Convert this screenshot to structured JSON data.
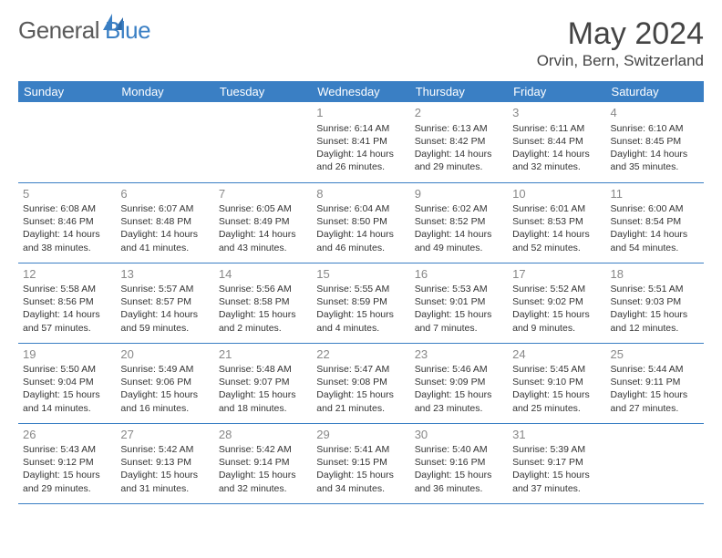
{
  "brand": {
    "part1": "General",
    "part2": "Blue"
  },
  "title": "May 2024",
  "location": "Orvin, Bern, Switzerland",
  "colors": {
    "header_bg": "#3a7fc4",
    "header_fg": "#ffffff",
    "border": "#3a7fc4",
    "text": "#333333",
    "daynum": "#888888",
    "logo_gray": "#5a5a5a",
    "logo_blue": "#3a7fc4"
  },
  "weekdays": [
    "Sunday",
    "Monday",
    "Tuesday",
    "Wednesday",
    "Thursday",
    "Friday",
    "Saturday"
  ],
  "weeks": [
    [
      null,
      null,
      null,
      {
        "d": "1",
        "sr": "6:14 AM",
        "ss": "8:41 PM",
        "dl": "14 hours and 26 minutes."
      },
      {
        "d": "2",
        "sr": "6:13 AM",
        "ss": "8:42 PM",
        "dl": "14 hours and 29 minutes."
      },
      {
        "d": "3",
        "sr": "6:11 AM",
        "ss": "8:44 PM",
        "dl": "14 hours and 32 minutes."
      },
      {
        "d": "4",
        "sr": "6:10 AM",
        "ss": "8:45 PM",
        "dl": "14 hours and 35 minutes."
      }
    ],
    [
      {
        "d": "5",
        "sr": "6:08 AM",
        "ss": "8:46 PM",
        "dl": "14 hours and 38 minutes."
      },
      {
        "d": "6",
        "sr": "6:07 AM",
        "ss": "8:48 PM",
        "dl": "14 hours and 41 minutes."
      },
      {
        "d": "7",
        "sr": "6:05 AM",
        "ss": "8:49 PM",
        "dl": "14 hours and 43 minutes."
      },
      {
        "d": "8",
        "sr": "6:04 AM",
        "ss": "8:50 PM",
        "dl": "14 hours and 46 minutes."
      },
      {
        "d": "9",
        "sr": "6:02 AM",
        "ss": "8:52 PM",
        "dl": "14 hours and 49 minutes."
      },
      {
        "d": "10",
        "sr": "6:01 AM",
        "ss": "8:53 PM",
        "dl": "14 hours and 52 minutes."
      },
      {
        "d": "11",
        "sr": "6:00 AM",
        "ss": "8:54 PM",
        "dl": "14 hours and 54 minutes."
      }
    ],
    [
      {
        "d": "12",
        "sr": "5:58 AM",
        "ss": "8:56 PM",
        "dl": "14 hours and 57 minutes."
      },
      {
        "d": "13",
        "sr": "5:57 AM",
        "ss": "8:57 PM",
        "dl": "14 hours and 59 minutes."
      },
      {
        "d": "14",
        "sr": "5:56 AM",
        "ss": "8:58 PM",
        "dl": "15 hours and 2 minutes."
      },
      {
        "d": "15",
        "sr": "5:55 AM",
        "ss": "8:59 PM",
        "dl": "15 hours and 4 minutes."
      },
      {
        "d": "16",
        "sr": "5:53 AM",
        "ss": "9:01 PM",
        "dl": "15 hours and 7 minutes."
      },
      {
        "d": "17",
        "sr": "5:52 AM",
        "ss": "9:02 PM",
        "dl": "15 hours and 9 minutes."
      },
      {
        "d": "18",
        "sr": "5:51 AM",
        "ss": "9:03 PM",
        "dl": "15 hours and 12 minutes."
      }
    ],
    [
      {
        "d": "19",
        "sr": "5:50 AM",
        "ss": "9:04 PM",
        "dl": "15 hours and 14 minutes."
      },
      {
        "d": "20",
        "sr": "5:49 AM",
        "ss": "9:06 PM",
        "dl": "15 hours and 16 minutes."
      },
      {
        "d": "21",
        "sr": "5:48 AM",
        "ss": "9:07 PM",
        "dl": "15 hours and 18 minutes."
      },
      {
        "d": "22",
        "sr": "5:47 AM",
        "ss": "9:08 PM",
        "dl": "15 hours and 21 minutes."
      },
      {
        "d": "23",
        "sr": "5:46 AM",
        "ss": "9:09 PM",
        "dl": "15 hours and 23 minutes."
      },
      {
        "d": "24",
        "sr": "5:45 AM",
        "ss": "9:10 PM",
        "dl": "15 hours and 25 minutes."
      },
      {
        "d": "25",
        "sr": "5:44 AM",
        "ss": "9:11 PM",
        "dl": "15 hours and 27 minutes."
      }
    ],
    [
      {
        "d": "26",
        "sr": "5:43 AM",
        "ss": "9:12 PM",
        "dl": "15 hours and 29 minutes."
      },
      {
        "d": "27",
        "sr": "5:42 AM",
        "ss": "9:13 PM",
        "dl": "15 hours and 31 minutes."
      },
      {
        "d": "28",
        "sr": "5:42 AM",
        "ss": "9:14 PM",
        "dl": "15 hours and 32 minutes."
      },
      {
        "d": "29",
        "sr": "5:41 AM",
        "ss": "9:15 PM",
        "dl": "15 hours and 34 minutes."
      },
      {
        "d": "30",
        "sr": "5:40 AM",
        "ss": "9:16 PM",
        "dl": "15 hours and 36 minutes."
      },
      {
        "d": "31",
        "sr": "5:39 AM",
        "ss": "9:17 PM",
        "dl": "15 hours and 37 minutes."
      },
      null
    ]
  ],
  "labels": {
    "sunrise": "Sunrise:",
    "sunset": "Sunset:",
    "daylight": "Daylight:"
  }
}
